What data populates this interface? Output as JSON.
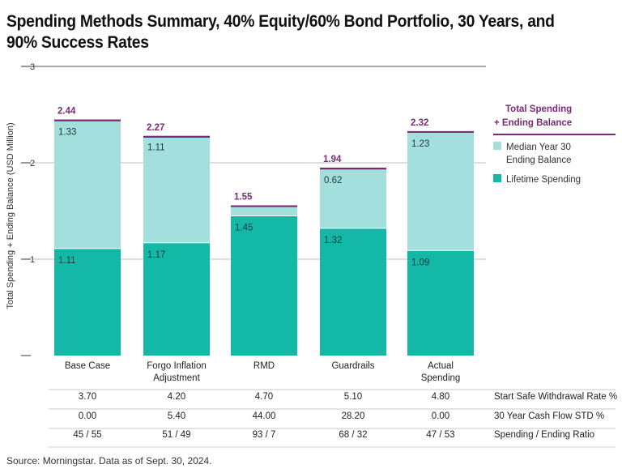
{
  "title": "Spending Methods Summary, 40% Equity/60% Bond Portfolio, 30 Years, and 90% Success Rates",
  "source": "Source: Morningstar. Data as of Sept. 30, 2024.",
  "colors": {
    "lifetime": "#14b8a6",
    "median": "#a3dfdc",
    "total_line": "#7b2a76",
    "grid": "#bdbdbd",
    "axis": "#555555"
  },
  "chart_data": {
    "type": "bar",
    "stacked": true,
    "categories": [
      "Base Case",
      "Forgo Inflation Adjustment",
      "RMD",
      "Guardrails",
      "Actual Spending"
    ],
    "category_lines": [
      [
        "Base Case"
      ],
      [
        "Forgo Inflation",
        "Adjustment"
      ],
      [
        "RMD"
      ],
      [
        "Guardrails"
      ],
      [
        "Actual",
        "Spending"
      ]
    ],
    "series": [
      {
        "name": "Lifetime Spending",
        "values": [
          1.11,
          1.17,
          1.45,
          1.32,
          1.09
        ],
        "labels": [
          "1.11",
          "1.17",
          "1.45",
          "1.32",
          "1.09"
        ]
      },
      {
        "name": "Median Year 30 Ending Balance",
        "values": [
          1.33,
          1.11,
          0.1,
          0.62,
          1.23
        ],
        "labels": [
          "1.33",
          "1.11",
          "",
          "0.62",
          "1.23"
        ]
      }
    ],
    "totals": [
      "2.44",
      "2.27",
      "1.55",
      "1.94",
      "2.32"
    ],
    "total_values": [
      2.44,
      2.27,
      1.55,
      1.94,
      2.32
    ],
    "legend": {
      "total_lines": [
        "Total Spending",
        "+ Ending Balance"
      ],
      "median_lines": [
        "Median Year 30",
        "Ending Balance"
      ],
      "lifetime": "Lifetime Spending",
      "placement": "right"
    },
    "ylabel": "Total Spending + Ending Balance (USD Million)",
    "xlabel": "",
    "ylim": [
      0,
      3
    ],
    "yticks": [
      "1",
      "2",
      "3"
    ],
    "grid": true,
    "table": {
      "rows": [
        {
          "label": "Start Safe Withdrawal Rate %",
          "values": [
            "3.70",
            "4.20",
            "4.70",
            "5.10",
            "4.80"
          ]
        },
        {
          "label": "30 Year Cash Flow STD %",
          "values": [
            "0.00",
            "5.40",
            "44.00",
            "28.20",
            "0.00"
          ]
        },
        {
          "label": "Spending / Ending Ratio",
          "values": [
            "45 / 55",
            "51 / 49",
            "93 / 7",
            "68 / 32",
            "47 / 53"
          ]
        }
      ]
    }
  }
}
